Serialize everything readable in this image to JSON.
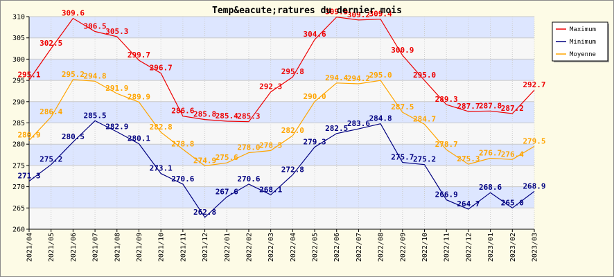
{
  "chart_data": {
    "type": "line",
    "title": "Temp&eacute;ratures du dernier mois",
    "xlabel": "",
    "ylabel": "",
    "ylim": [
      260,
      310
    ],
    "yticks": [
      260,
      265,
      270,
      275,
      280,
      285,
      290,
      295,
      300,
      305,
      310
    ],
    "grid": true,
    "legend_position": "top-right",
    "categories": [
      "2021/04",
      "2021/05",
      "2021/06",
      "2021/07",
      "2021/08",
      "2021/09",
      "2021/10",
      "2021/11",
      "2021/12",
      "2022/01",
      "2022/02",
      "2022/03",
      "2022/04",
      "2022/05",
      "2022/06",
      "2022/07",
      "2022/08",
      "2022/09",
      "2022/10",
      "2022/11",
      "2022/12",
      "2023/01",
      "2023/02",
      "2023/03"
    ],
    "series": [
      {
        "name": "Maximum",
        "color": "#ee0000",
        "values": [
          295.1,
          302.5,
          309.6,
          306.5,
          305.3,
          299.7,
          296.7,
          286.6,
          285.8,
          285.4,
          285.3,
          292.3,
          295.8,
          304.6,
          309.9,
          309.2,
          309.4,
          300.9,
          295.0,
          289.3,
          287.7,
          287.8,
          287.2,
          292.7
        ]
      },
      {
        "name": "Minimum",
        "color": "#000080",
        "values": [
          271.3,
          275.2,
          280.5,
          285.5,
          282.9,
          280.1,
          273.1,
          270.6,
          262.8,
          267.6,
          270.6,
          268.1,
          272.8,
          279.3,
          282.5,
          283.6,
          284.8,
          275.7,
          275.2,
          266.9,
          264.7,
          268.6,
          265.0,
          268.9
        ]
      },
      {
        "name": "Moyenne",
        "color": "#ffa500",
        "values": [
          280.9,
          286.4,
          295.2,
          294.8,
          291.9,
          289.9,
          282.8,
          278.8,
          274.9,
          275.6,
          278.0,
          278.5,
          282.0,
          290.0,
          294.4,
          294.2,
          295.0,
          287.5,
          284.7,
          278.7,
          275.3,
          276.7,
          276.4,
          279.5
        ]
      }
    ]
  }
}
